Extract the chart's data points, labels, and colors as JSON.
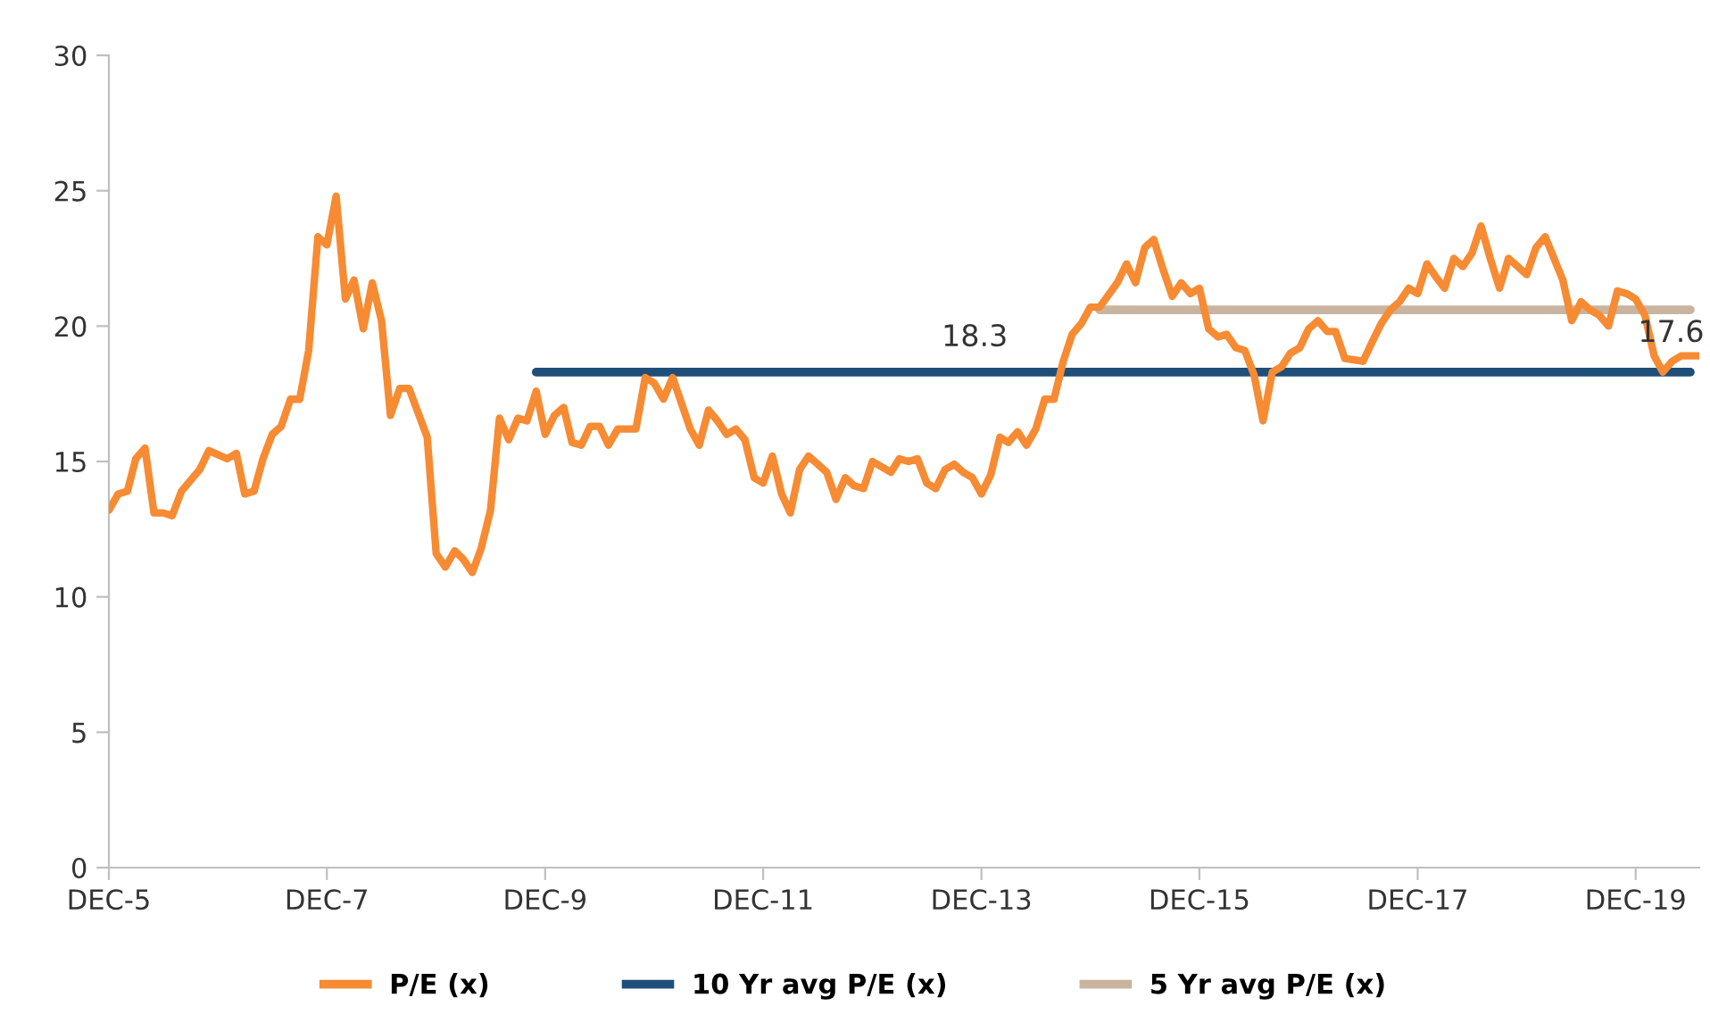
{
  "chart_data": {
    "type": "line",
    "xlim": [
      "2005-12",
      "2020-07"
    ],
    "ylim": [
      0,
      30
    ],
    "xticks": [
      {
        "value": "2005-12",
        "label": "DEC-5"
      },
      {
        "value": "2007-12",
        "label": "DEC-7"
      },
      {
        "value": "2009-12",
        "label": "DEC-9"
      },
      {
        "value": "2011-12",
        "label": "DEC-11"
      },
      {
        "value": "2013-12",
        "label": "DEC-13"
      },
      {
        "value": "2015-12",
        "label": "DEC-15"
      },
      {
        "value": "2017-12",
        "label": "DEC-17"
      },
      {
        "value": "2019-12",
        "label": "DEC-19"
      }
    ],
    "yticks": [
      0,
      5,
      10,
      15,
      20,
      25,
      30
    ],
    "grid": false,
    "legend": "bottom",
    "marker": "none",
    "line_style": "solid",
    "annotations": [
      "18.3",
      "17.6"
    ],
    "series": [
      {
        "name": "P/E (x)",
        "color": "#f68b33",
        "x": [
          "2005-12",
          "2006-01",
          "2006-02",
          "2006-03",
          "2006-04",
          "2006-05",
          "2006-06",
          "2006-07",
          "2006-08",
          "2006-10",
          "2006-11",
          "2007-01",
          "2007-02",
          "2007-03",
          "2007-04",
          "2007-05",
          "2007-06",
          "2007-07",
          "2007-08",
          "2007-09",
          "2007-10",
          "2007-11",
          "2007-12",
          "2008-01",
          "2008-02",
          "2008-03",
          "2008-04",
          "2008-05",
          "2008-06",
          "2008-07",
          "2008-08",
          "2008-09",
          "2008-11",
          "2008-12",
          "2009-01",
          "2009-02",
          "2009-03",
          "2009-04",
          "2009-05",
          "2009-06",
          "2009-07",
          "2009-08",
          "2009-09",
          "2009-10",
          "2009-11",
          "2009-12",
          "2010-01",
          "2010-02",
          "2010-03",
          "2010-04",
          "2010-05",
          "2010-06",
          "2010-07",
          "2010-08",
          "2010-09",
          "2010-10",
          "2010-11",
          "2010-12",
          "2011-01",
          "2011-02",
          "2011-04",
          "2011-05",
          "2011-06",
          "2011-07",
          "2011-08",
          "2011-09",
          "2011-10",
          "2011-11",
          "2011-12",
          "2012-01",
          "2012-02",
          "2012-03",
          "2012-04",
          "2012-05",
          "2012-06",
          "2012-07",
          "2012-08",
          "2012-09",
          "2012-10",
          "2012-11",
          "2012-12",
          "2013-02",
          "2013-03",
          "2013-04",
          "2013-05",
          "2013-06",
          "2013-07",
          "2013-08",
          "2013-09",
          "2013-10",
          "2013-11",
          "2013-12",
          "2014-01",
          "2014-02",
          "2014-03",
          "2014-04",
          "2014-05",
          "2014-06",
          "2014-07",
          "2014-08",
          "2014-09",
          "2014-10",
          "2014-11",
          "2014-12",
          "2015-01",
          "2015-03",
          "2015-04",
          "2015-05",
          "2015-06",
          "2015-07",
          "2015-08",
          "2015-09",
          "2015-10",
          "2015-11",
          "2015-12",
          "2016-01",
          "2016-02",
          "2016-03",
          "2016-04",
          "2016-05",
          "2016-06",
          "2016-07",
          "2016-08",
          "2016-09",
          "2016-10",
          "2016-11",
          "2016-12",
          "2017-01",
          "2017-02",
          "2017-03",
          "2017-04",
          "2017-06",
          "2017-07",
          "2017-08",
          "2017-09",
          "2017-10",
          "2017-11",
          "2017-12",
          "2018-01",
          "2018-02",
          "2018-03",
          "2018-04",
          "2018-05",
          "2018-06",
          "2018-07",
          "2018-08",
          "2018-09",
          "2018-10",
          "2018-11",
          "2018-12",
          "2019-01",
          "2019-02",
          "2019-04",
          "2019-05",
          "2019-06",
          "2019-07",
          "2019-08",
          "2019-09",
          "2019-10",
          "2019-11",
          "2019-12",
          "2020-01",
          "2020-02",
          "2020-03",
          "2020-04",
          "2020-05",
          "2020-07"
        ],
        "values": [
          13.2,
          13.8,
          13.9,
          15.1,
          15.5,
          13.1,
          13.1,
          13.0,
          13.9,
          14.7,
          15.4,
          15.1,
          15.3,
          13.8,
          13.9,
          15.1,
          16.0,
          16.3,
          17.3,
          17.3,
          19.1,
          23.3,
          23.0,
          24.8,
          21.0,
          21.7,
          19.9,
          21.6,
          20.2,
          16.7,
          17.7,
          17.7,
          15.9,
          11.6,
          11.1,
          11.7,
          11.4,
          10.9,
          11.8,
          13.2,
          16.6,
          15.8,
          16.6,
          16.5,
          17.6,
          16.0,
          16.7,
          17.0,
          15.7,
          15.6,
          16.3,
          16.3,
          15.6,
          16.2,
          16.2,
          16.2,
          18.1,
          17.9,
          17.3,
          18.1,
          16.2,
          15.6,
          16.9,
          16.5,
          16.0,
          16.2,
          15.8,
          14.4,
          14.2,
          15.2,
          13.8,
          13.1,
          14.7,
          15.2,
          14.9,
          14.6,
          13.6,
          14.4,
          14.1,
          14.0,
          15.0,
          14.6,
          15.1,
          15.0,
          15.1,
          14.2,
          14.0,
          14.7,
          14.9,
          14.6,
          14.4,
          13.8,
          14.5,
          15.9,
          15.7,
          16.1,
          15.6,
          16.2,
          17.3,
          17.3,
          18.7,
          19.7,
          20.1,
          20.7,
          20.7,
          21.6,
          22.3,
          21.6,
          22.9,
          23.2,
          22.1,
          21.1,
          21.6,
          21.2,
          21.4,
          19.9,
          19.6,
          19.7,
          19.2,
          19.1,
          18.2,
          16.5,
          18.3,
          18.5,
          19.0,
          19.2,
          19.9,
          20.2,
          19.8,
          19.8,
          18.8,
          18.7,
          19.4,
          20.1,
          20.6,
          20.9,
          21.4,
          21.2,
          22.3,
          21.8,
          21.4,
          22.5,
          22.2,
          22.7,
          23.7,
          22.5,
          21.4,
          22.5,
          22.2,
          21.9,
          22.9,
          23.3,
          21.7,
          20.2,
          20.9,
          20.6,
          20.4,
          20.0,
          21.3,
          21.2,
          21.0,
          20.4,
          18.9,
          18.3,
          18.7,
          18.9,
          18.9
        ]
      },
      {
        "name": "10 Yr avg P/E (x)",
        "color": "#1f4e79",
        "x": [
          "2009-11",
          "2020-06"
        ],
        "values": [
          18.3,
          18.3
        ]
      },
      {
        "name": "5 Yr avg P/E (x)",
        "color": "#c8b49f",
        "x": [
          "2015-01",
          "2020-06"
        ],
        "values": [
          20.6,
          20.6
        ]
      }
    ]
  }
}
